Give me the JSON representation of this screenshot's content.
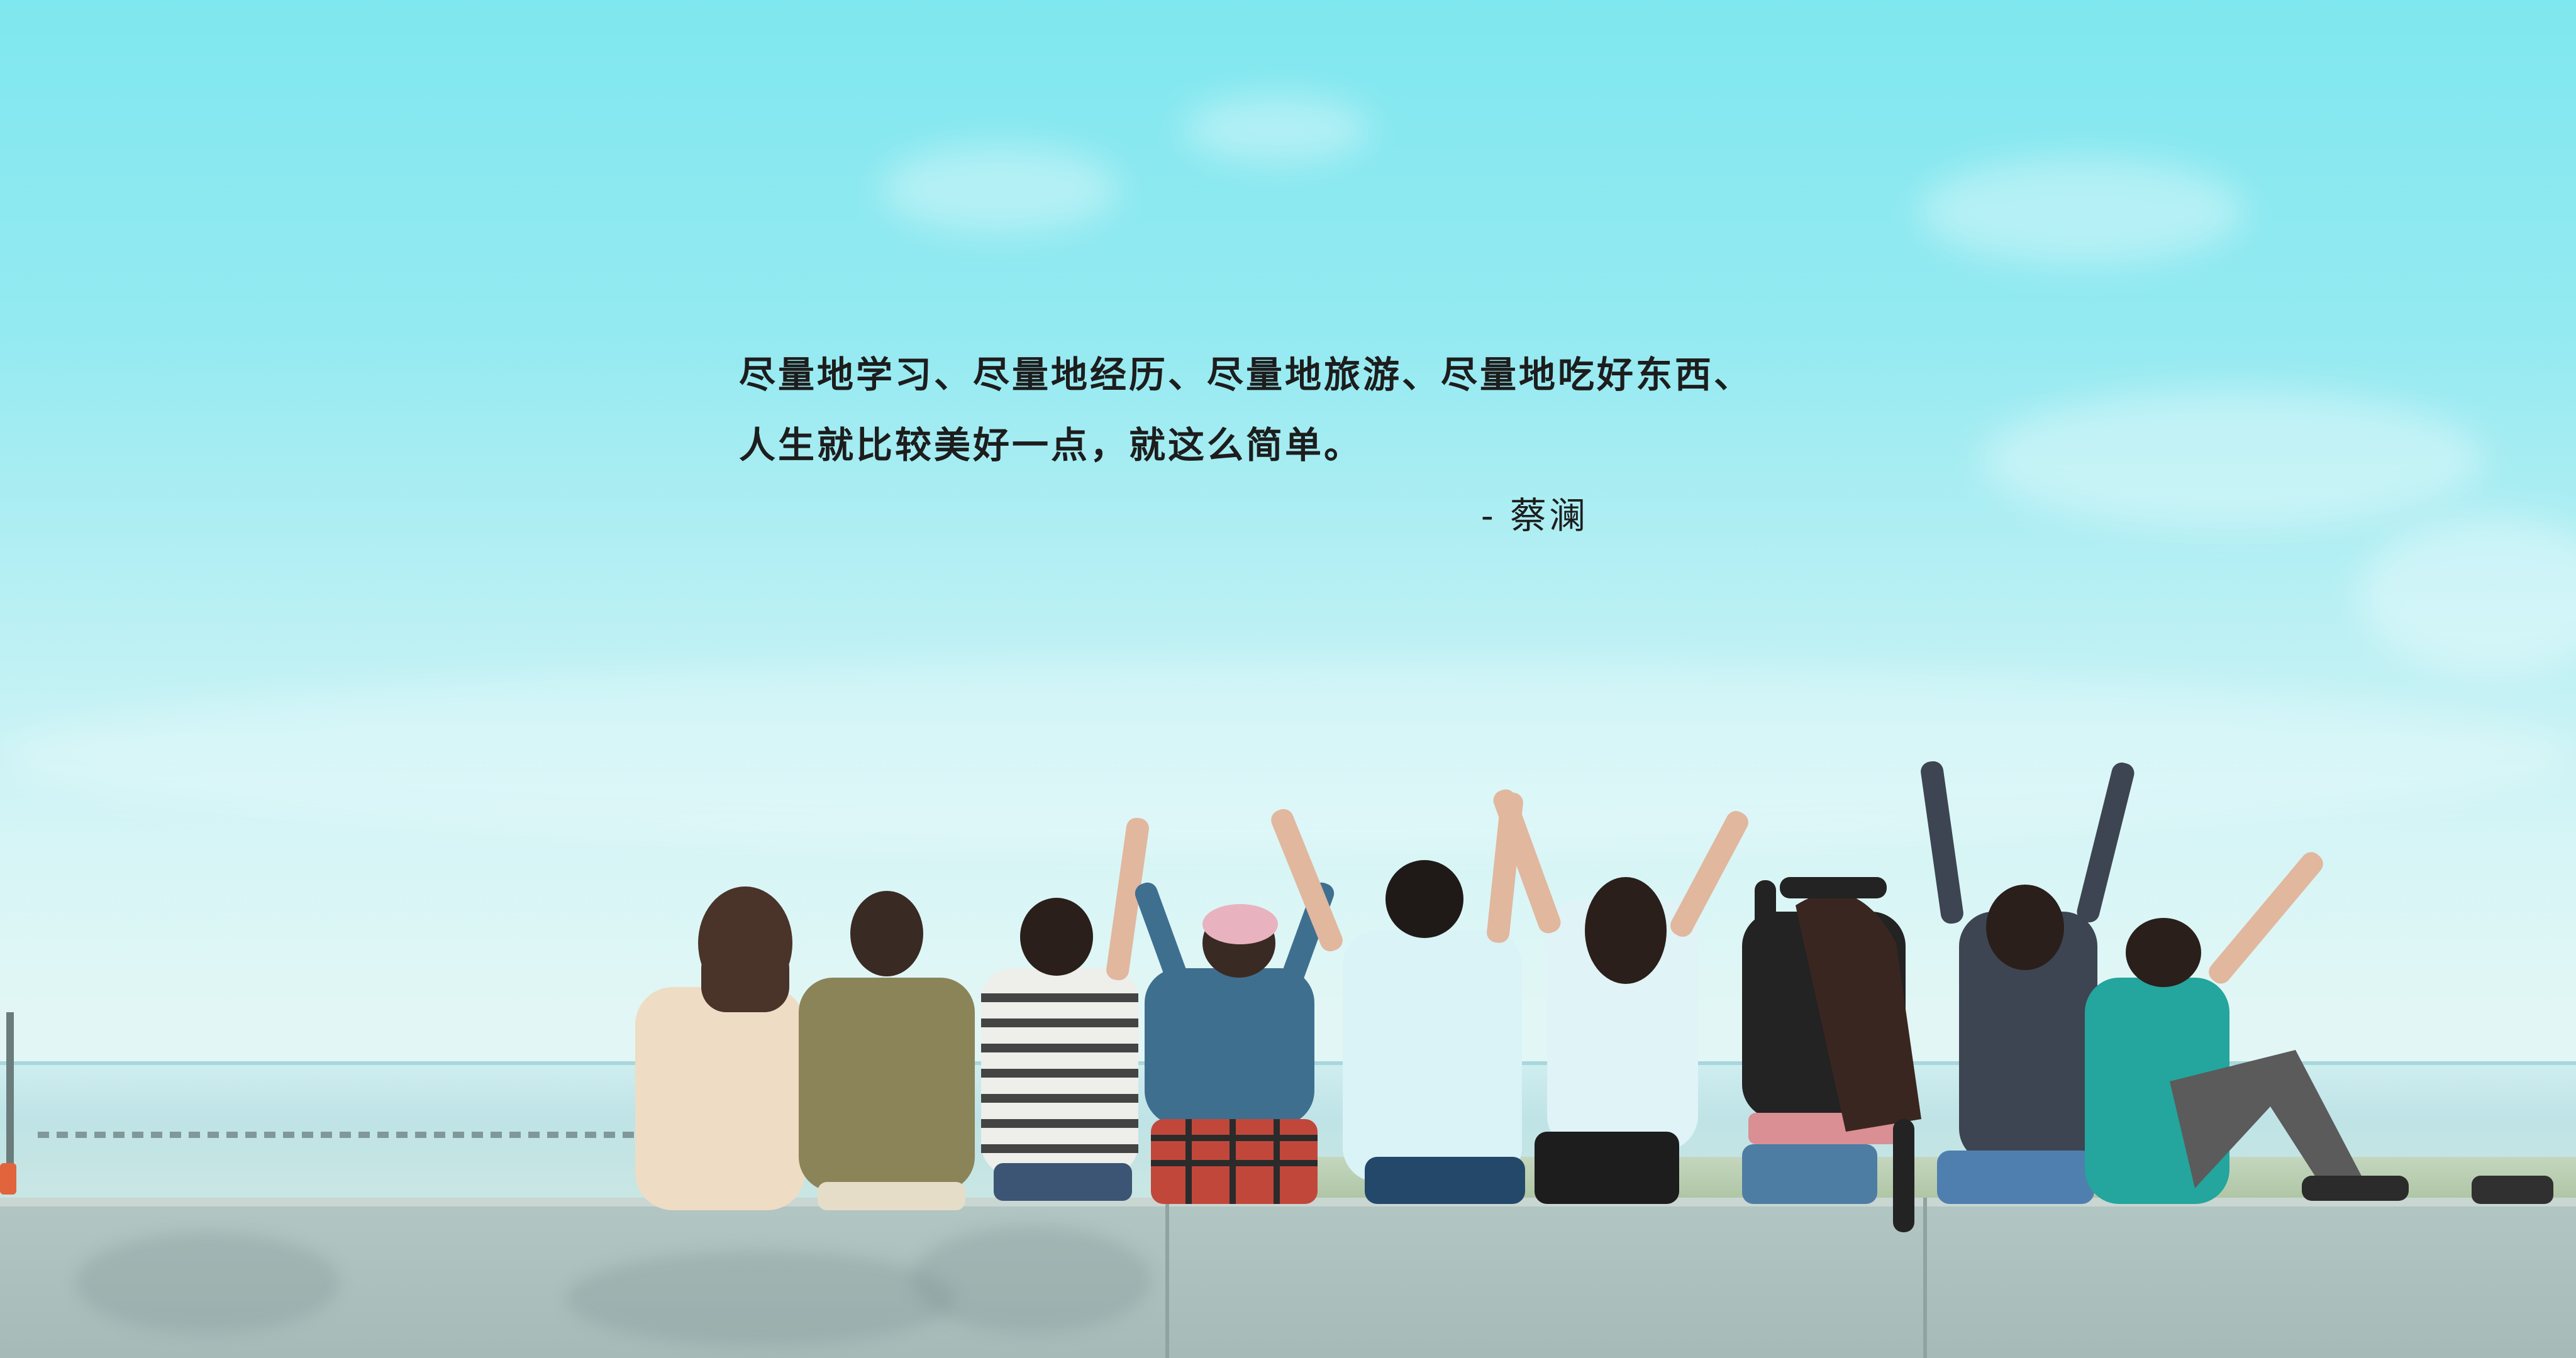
{
  "quote": {
    "line1": "尽量地学习、尽量地经历、尽量地旅游、尽量地吃好东西、",
    "line2": "人生就比较美好一点，就这么简单。",
    "author": "-  蔡澜"
  },
  "colors": {
    "sky_top": "#7fe7ef",
    "sky_bottom": "#e2f6f5",
    "sea": "#bfe3e6",
    "wall": "#a6bab8",
    "text": "#1d1d1d"
  }
}
